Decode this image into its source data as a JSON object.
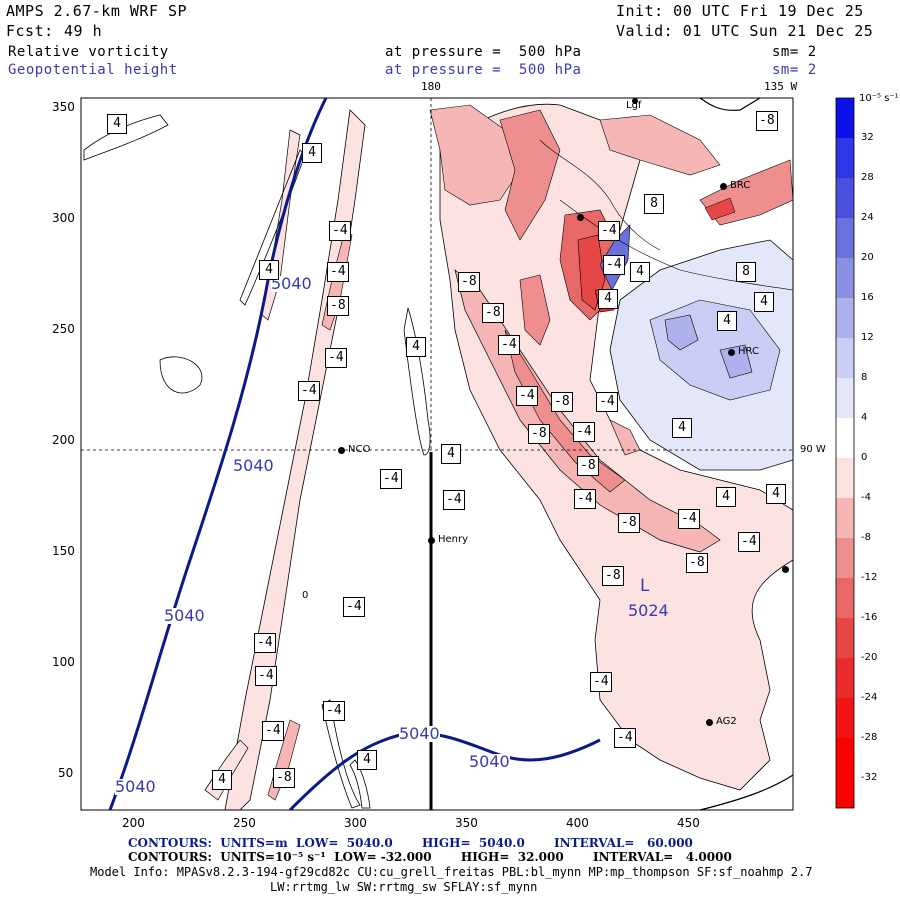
{
  "header": {
    "model": "AMPS 2.67-km WRF SP",
    "init": "Init: 00 UTC Fri 19 Dec 25",
    "fcst_label": "Fcst:",
    "fcst_value": "49 h",
    "valid": "Valid: 01 UTC Sun 21 Dec 25",
    "field1_name": "Relative vorticity",
    "field1_level": "at pressure =  500 hPa",
    "field1_sm": "sm= 2",
    "field2_name": "Geopotential height",
    "field2_level": "at pressure =  500 hPa",
    "field2_sm": "sm= 2"
  },
  "map": {
    "meridian_180": "180",
    "meridian_135w": "135 W",
    "meridian_90w": "90 W",
    "x_ticks": [
      "200",
      "250",
      "300",
      "350",
      "400",
      "450"
    ],
    "y_ticks": [
      "350",
      "300",
      "250",
      "200",
      "150",
      "100",
      "50"
    ],
    "stations": {
      "nco": "NCO",
      "henry": "Henry",
      "brc": "BRC",
      "hrc": "HRC",
      "ag2": "AG2",
      "lgf": "Lgf"
    },
    "low_marker": "L",
    "low_value": "5024",
    "height_labels": [
      "5040",
      "5040",
      "5040",
      "5040",
      "5040",
      "5040"
    ],
    "zero_label": "0",
    "vort_labels": [
      "4",
      "4",
      "4",
      "4",
      "-4",
      "-4",
      "-8",
      "-4",
      "-4",
      "-4",
      "-4",
      "-4",
      "-4",
      "-4",
      "-4",
      "-8",
      "4",
      "4",
      "4",
      "-4",
      "-8",
      "-8",
      "-4",
      "-4",
      "-8",
      "-8",
      "-4",
      "-4",
      "-8",
      "-8",
      "-8",
      "-4",
      "-8",
      "-4",
      "-4",
      "-4",
      "-4",
      "4",
      "4",
      "4",
      "4",
      "4",
      "8",
      "8",
      "4",
      "-4",
      "-8",
      "4",
      "-4"
    ]
  },
  "colorbar": {
    "units": "10⁻⁵ s⁻¹",
    "labels": [
      "32",
      "28",
      "24",
      "20",
      "16",
      "12",
      "8",
      "4",
      "0",
      "-4",
      "-8",
      "-12",
      "-16",
      "-20",
      "-24",
      "-28",
      "-32"
    ],
    "colors": [
      "#0b10e8",
      "#2f36e6",
      "#4a50dd",
      "#6a70dc",
      "#8a8fe2",
      "#aeb1ec",
      "#cacdf4",
      "#e4e6fa",
      "#ffffff",
      "#fde2e2",
      "#f6b6b6",
      "#ee8e8e",
      "#e86868",
      "#e64646",
      "#e92b2b",
      "#f01414",
      "#fc0000"
    ]
  },
  "footer": {
    "line1": "CONTOURS:  UNITS=m  LOW=  5040.0       HIGH=  5040.0       INTERVAL=   60.000",
    "line2": "CONTOURS:  UNITS=10⁻⁵ s⁻¹  LOW= -32.000       HIGH=  32.000       INTERVAL=   4.0000",
    "line3": "Model Info: MPASv8.2.3-194-gf29cd82c CU:cu_grell_freitas PBL:bl_mynn MP:mp_thompson SF:sf_noahmp 2.7",
    "line4": "LW:rrtmg_lw SW:rrtmg_sw SFLAY:sf_mynn"
  }
}
